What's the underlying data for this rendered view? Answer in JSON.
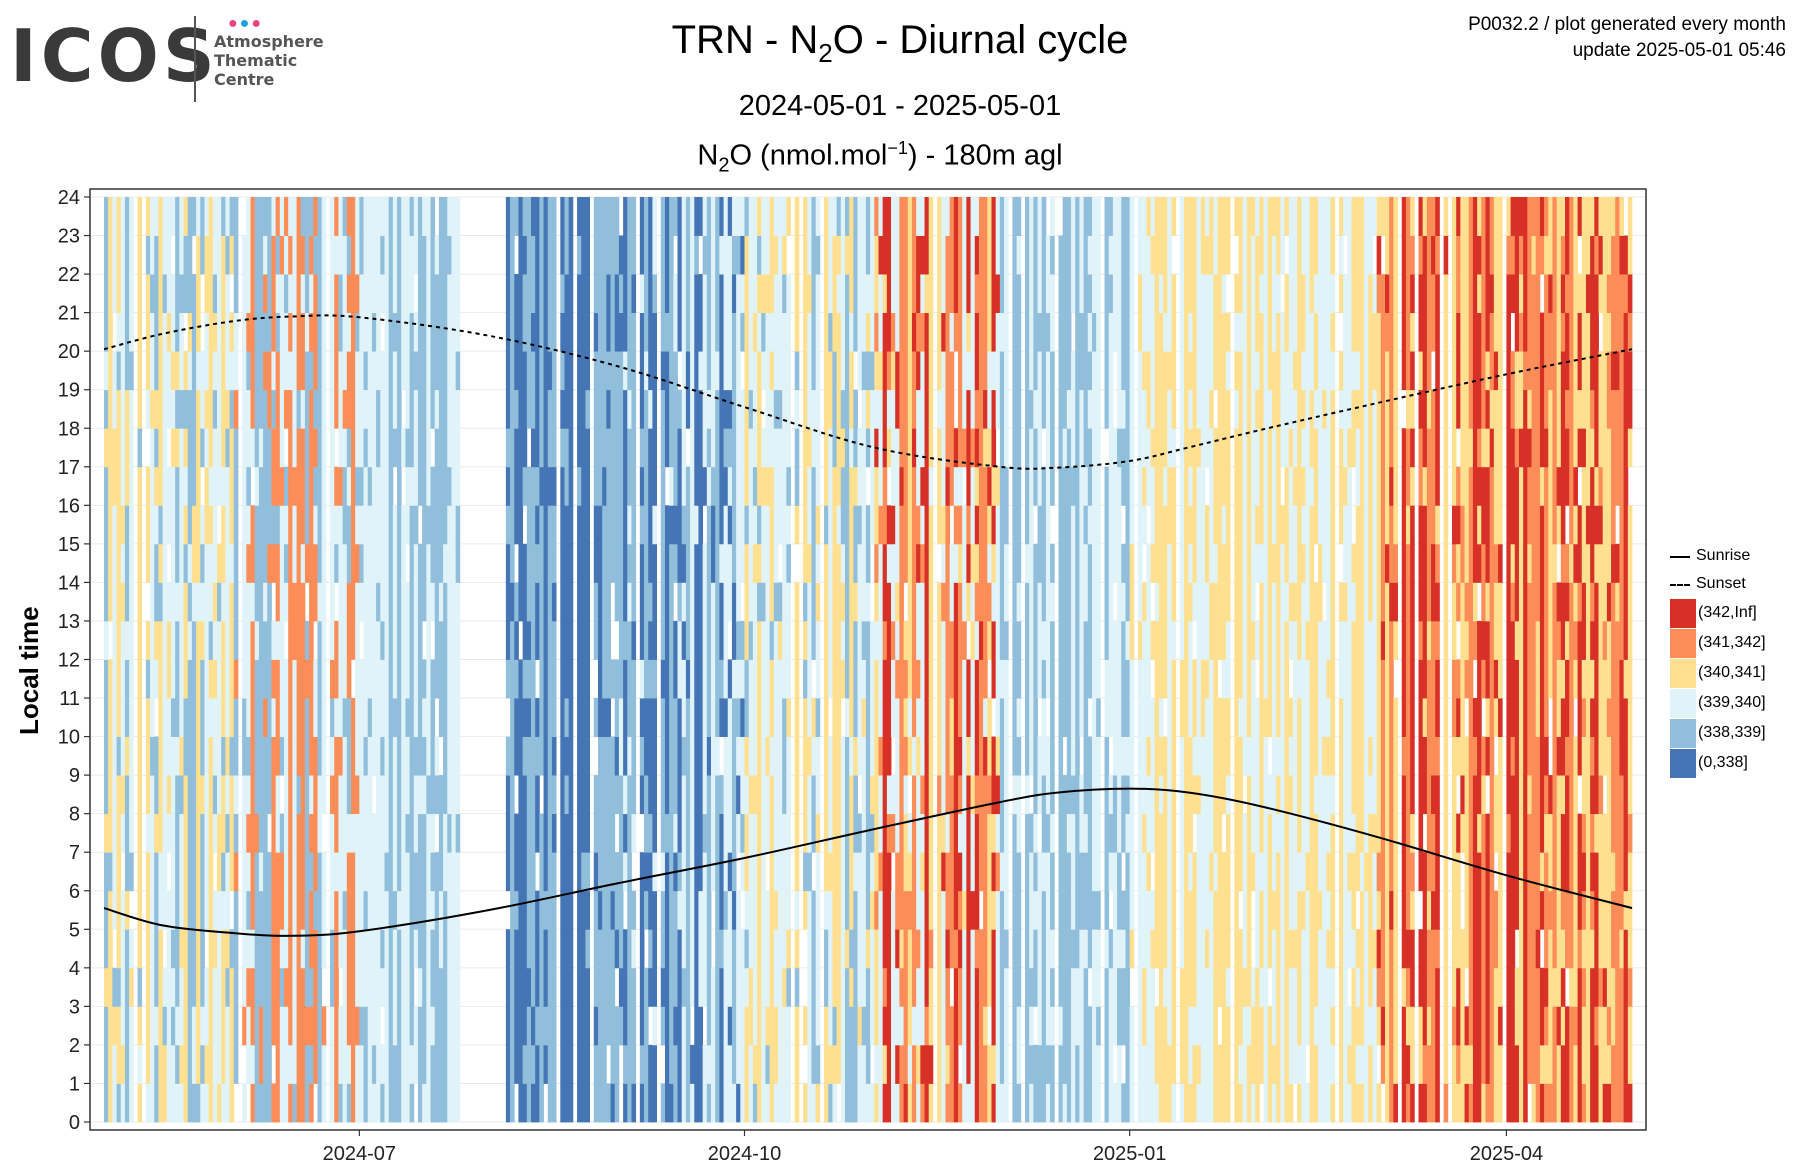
{
  "logo": {
    "word": "ICOS",
    "lines": [
      "Atmosphere",
      "Thematic",
      "Centre"
    ],
    "dot_colors": [
      "#e8447a",
      "#1fa0e0",
      "#e8447a"
    ]
  },
  "header": {
    "plot_id": "P0032.2 / plot generated every month",
    "update": "update  2025-05-01 05:46"
  },
  "title": {
    "prefix": "TRN - N",
    "sub": "2",
    "suffix": "O - Diurnal cycle"
  },
  "subtitle": "2024-05-01 - 2025-05-01",
  "subtitle2": {
    "prefix": "N",
    "sub": "2",
    "mid": "O (nmol.mol",
    "sup": "−1",
    "suffix": ") - 180m agl"
  },
  "ylabel": "Local time",
  "colors": {
    "342_inf": "#d73027",
    "341_342": "#fc8d59",
    "340_341": "#fee090",
    "339_340": "#e0f3f8",
    "338_339": "#91bfdb",
    "0_338": "#4575b4",
    "grid": "#ebebeb",
    "gap": "#ffffff"
  },
  "legend": {
    "lines": [
      {
        "label": "Sunrise",
        "style": "solid"
      },
      {
        "label": "Sunset",
        "style": "dashed"
      }
    ],
    "bins": [
      {
        "label": "(342,Inf]",
        "color_key": "342_inf"
      },
      {
        "label": "(341,342]",
        "color_key": "341_342"
      },
      {
        "label": "(340,341]",
        "color_key": "340_341"
      },
      {
        "label": "(339,340]",
        "color_key": "339_340"
      },
      {
        "label": "(338,339]",
        "color_key": "338_339"
      },
      {
        "label": "(0,338]",
        "color_key": "0_338"
      }
    ]
  },
  "chart_data": {
    "type": "heatmap",
    "x_axis": {
      "start": "2024-05-01",
      "end": "2025-05-01",
      "ticks": [
        "2024-07",
        "2024-10",
        "2025-01",
        "2025-04"
      ]
    },
    "y_axis": {
      "label": "Local time",
      "min": 0,
      "max": 24,
      "ticks": [
        0,
        1,
        2,
        3,
        4,
        5,
        6,
        7,
        8,
        9,
        10,
        11,
        12,
        13,
        14,
        15,
        16,
        17,
        18,
        19,
        20,
        21,
        22,
        23,
        24
      ]
    },
    "value_bins": [
      "(0,338]",
      "(338,339]",
      "(339,340]",
      "(340,341]",
      "(341,342]",
      "(342,Inf]"
    ],
    "monthly_dominant_bins": [
      {
        "month": "2024-05",
        "bins": [
          "(339,340]",
          "(338,339]",
          "(340,341]"
        ]
      },
      {
        "month": "2024-06",
        "bins": [
          "(338,339]",
          "(339,340]",
          "(341,342]"
        ]
      },
      {
        "month": "2024-07",
        "bins": [
          "(338,339]",
          "(339,340]"
        ]
      },
      {
        "month": "2024-08",
        "bins": [
          "(0,338]",
          "(338,339]"
        ]
      },
      {
        "month": "2024-09",
        "bins": [
          "(338,339]",
          "(0,338]",
          "(339,340]"
        ]
      },
      {
        "month": "2024-10",
        "bins": [
          "(338,339]",
          "(339,340]",
          "(340,341]"
        ]
      },
      {
        "month": "2024-11",
        "bins": [
          "(340,341]",
          "(342,Inf]",
          "(341,342]",
          "(339,340]"
        ]
      },
      {
        "month": "2024-12",
        "bins": [
          "(339,340]",
          "(338,339]"
        ]
      },
      {
        "month": "2025-01",
        "bins": [
          "(339,340]",
          "(340,341]"
        ]
      },
      {
        "month": "2025-02",
        "bins": [
          "(340,341]",
          "(339,340]"
        ]
      },
      {
        "month": "2025-03",
        "bins": [
          "(340,341]",
          "(342,Inf]",
          "(341,342]"
        ]
      },
      {
        "month": "2025-04",
        "bins": [
          "(342,Inf]",
          "(341,342]",
          "(340,341]"
        ]
      }
    ],
    "gaps": [
      {
        "from": "2024-07-26",
        "to": "2024-08-05"
      }
    ],
    "series": [
      {
        "name": "Sunrise",
        "style": "solid",
        "x": [
          "2024-05-01",
          "2024-05-15",
          "2024-06-01",
          "2024-06-15",
          "2024-07-01",
          "2024-08-01",
          "2024-09-01",
          "2024-10-01",
          "2024-11-01",
          "2024-12-01",
          "2024-12-15",
          "2025-01-01",
          "2025-01-15",
          "2025-02-01",
          "2025-03-01",
          "2025-04-01",
          "2025-05-01"
        ],
        "y": [
          5.55,
          5.1,
          4.9,
          4.83,
          4.95,
          5.5,
          6.2,
          6.85,
          7.6,
          8.3,
          8.55,
          8.65,
          8.55,
          8.2,
          7.4,
          6.4,
          5.55
        ]
      },
      {
        "name": "Sunset",
        "style": "dashed",
        "x": [
          "2024-05-01",
          "2024-05-15",
          "2024-06-01",
          "2024-06-15",
          "2024-07-01",
          "2024-08-01",
          "2024-09-01",
          "2024-10-01",
          "2024-11-01",
          "2024-12-01",
          "2024-12-15",
          "2025-01-01",
          "2025-01-15",
          "2025-02-01",
          "2025-03-01",
          "2025-04-01",
          "2025-05-01"
        ],
        "y": [
          20.05,
          20.45,
          20.78,
          20.9,
          20.88,
          20.4,
          19.6,
          18.55,
          17.5,
          17.0,
          16.98,
          17.15,
          17.5,
          17.95,
          18.65,
          19.4,
          20.05
        ]
      }
    ]
  }
}
